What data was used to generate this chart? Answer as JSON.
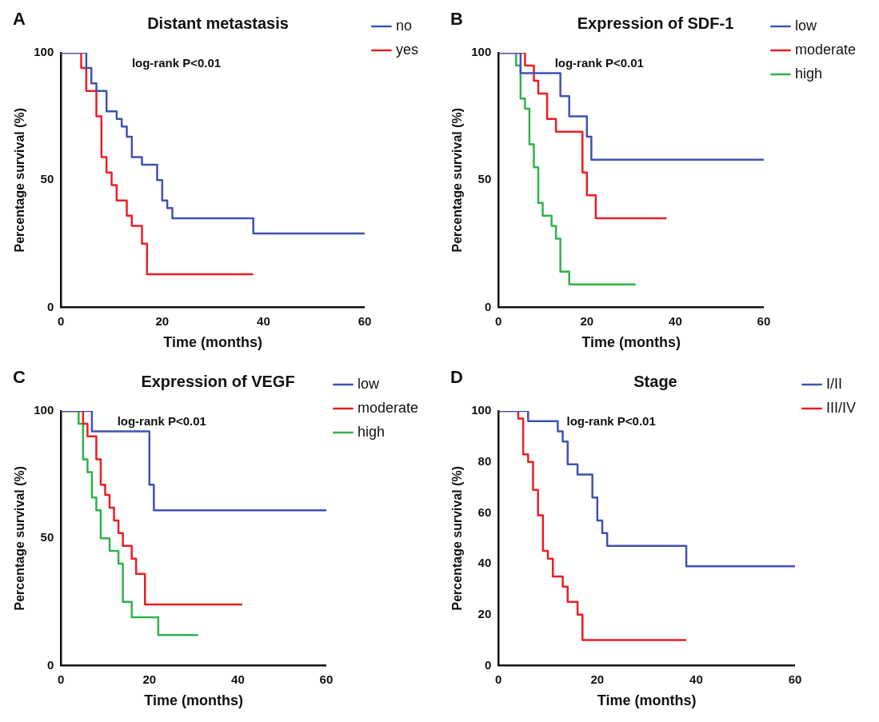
{
  "chart_data": [
    {
      "type": "step",
      "title": "Distant metastasis",
      "xlabel": "Time (months)",
      "ylabel": "Percentage survival (%)",
      "annotations": [
        "A",
        "log-rank P<0.01"
      ],
      "xlim": [
        0,
        60
      ],
      "ylim": [
        0,
        100
      ],
      "xticks": [
        0,
        20,
        40,
        60
      ],
      "yticks": [
        0,
        50,
        100
      ],
      "grid": false,
      "legend": "top right",
      "marker": "none",
      "series": [
        {
          "name": "no",
          "color": "#3f51b5",
          "x": [
            0,
            5,
            6,
            7,
            9,
            11,
            12,
            13,
            14,
            16,
            19,
            20,
            21,
            22,
            38,
            60
          ],
          "values": [
            100,
            94,
            88,
            85,
            77,
            74,
            71,
            67,
            59,
            56,
            50,
            42,
            39,
            35,
            29,
            29
          ]
        },
        {
          "name": "yes",
          "color": "#ed1c24",
          "x": [
            0,
            4,
            5,
            7,
            8,
            9,
            10,
            11,
            13,
            14,
            16,
            17,
            38
          ],
          "values": [
            100,
            94,
            85,
            75,
            59,
            53,
            48,
            42,
            36,
            32,
            25,
            13,
            13
          ]
        }
      ]
    },
    {
      "type": "step",
      "title": "Expression of SDF-1",
      "xlabel": "Time (months)",
      "ylabel": "Percentage survival (%)",
      "annotations": [
        "B",
        "log-rank P<0.01"
      ],
      "xlim": [
        0,
        60
      ],
      "ylim": [
        0,
        100
      ],
      "xticks": [
        0,
        20,
        40,
        60
      ],
      "yticks": [
        0,
        50,
        100
      ],
      "grid": false,
      "legend": "top right",
      "marker": "none",
      "series": [
        {
          "name": "low",
          "color": "#3f51b5",
          "x": [
            0,
            5,
            14,
            16,
            20,
            21,
            60
          ],
          "values": [
            100,
            92,
            83,
            75,
            67,
            58,
            58
          ]
        },
        {
          "name": "moderate",
          "color": "#ed1c24",
          "x": [
            0,
            6,
            8,
            9,
            11,
            13,
            19,
            20,
            22,
            38
          ],
          "values": [
            100,
            95,
            89,
            84,
            74,
            69,
            53,
            44,
            35,
            35
          ]
        },
        {
          "name": "high",
          "color": "#2db34a",
          "x": [
            0,
            4,
            5,
            6,
            7,
            8,
            9,
            10,
            12,
            13,
            14,
            16,
            31
          ],
          "values": [
            100,
            95,
            82,
            78,
            64,
            55,
            41,
            36,
            32,
            27,
            14,
            9,
            9
          ]
        }
      ]
    },
    {
      "type": "step",
      "title": "Expression of VEGF",
      "xlabel": "Time (months)",
      "ylabel": "Percentage survival (%)",
      "annotations": [
        "C",
        "log-rank P<0.01"
      ],
      "xlim": [
        0,
        60
      ],
      "ylim": [
        0,
        100
      ],
      "xticks": [
        0,
        20,
        40,
        60
      ],
      "yticks": [
        0,
        50,
        100
      ],
      "grid": false,
      "legend": "top right",
      "marker": "none",
      "series": [
        {
          "name": "low",
          "color": "#3f51b5",
          "x": [
            0,
            7,
            20,
            21,
            60
          ],
          "values": [
            100,
            92,
            71,
            61,
            61
          ]
        },
        {
          "name": "moderate",
          "color": "#ed1c24",
          "x": [
            0,
            5,
            6,
            8,
            9,
            10,
            11,
            12,
            13,
            14,
            16,
            17,
            19,
            41
          ],
          "values": [
            100,
            95,
            90,
            81,
            71,
            67,
            62,
            57,
            52,
            47,
            42,
            36,
            24,
            24
          ]
        },
        {
          "name": "high",
          "color": "#2db34a",
          "x": [
            0,
            4,
            5,
            6,
            7,
            8,
            9,
            11,
            13,
            14,
            16,
            22,
            31
          ],
          "values": [
            100,
            95,
            81,
            76,
            66,
            61,
            50,
            45,
            40,
            25,
            19,
            12,
            12
          ]
        }
      ]
    },
    {
      "type": "step",
      "title": "Stage",
      "xlabel": "Time (months)",
      "ylabel": "Percentage survival (%)",
      "annotations": [
        "D",
        "log-rank P<0.01"
      ],
      "xlim": [
        0,
        60
      ],
      "ylim": [
        0,
        100
      ],
      "xticks": [
        0,
        20,
        40,
        60
      ],
      "yticks": [
        0,
        20,
        40,
        60,
        80,
        100
      ],
      "grid": false,
      "legend": "top right",
      "marker": "none",
      "series": [
        {
          "name": "I/II",
          "color": "#3f51b5",
          "x": [
            0,
            6,
            12,
            13,
            14,
            16,
            19,
            20,
            21,
            22,
            38,
            60
          ],
          "values": [
            100,
            96,
            92,
            88,
            79,
            75,
            66,
            57,
            52,
            47,
            39,
            39
          ]
        },
        {
          "name": "III/IV",
          "color": "#ed1c24",
          "x": [
            0,
            4,
            5,
            6,
            7,
            8,
            9,
            10,
            11,
            13,
            14,
            16,
            17,
            38
          ],
          "values": [
            100,
            97,
            83,
            80,
            69,
            59,
            45,
            42,
            35,
            31,
            25,
            20,
            10,
            10
          ]
        }
      ]
    }
  ]
}
